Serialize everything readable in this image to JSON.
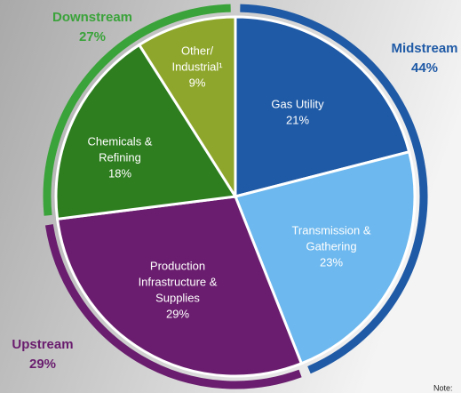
{
  "chart_data": {
    "type": "pie",
    "labels": [
      [
        "Gas Utility"
      ],
      [
        "Transmission &",
        "Gathering"
      ],
      [
        "Production",
        "Infrastructure &",
        "Supplies"
      ],
      [
        "Chemicals &",
        "Refining"
      ],
      [
        "Other/",
        "Industrial¹"
      ]
    ],
    "values": [
      21,
      23,
      29,
      18,
      9
    ],
    "value_labels": [
      "21%",
      "23%",
      "29%",
      "18%",
      "9%"
    ],
    "colors": [
      "#1f5aa6",
      "#6db8ee",
      "#6a1d6e",
      "#2e7d1f",
      "#8ea62b"
    ],
    "groups": [
      {
        "name": "Midstream",
        "value": 44,
        "value_label": "44%",
        "color": "#1f5aa6"
      },
      {
        "name": "Upstream",
        "value": 29,
        "value_label": "29%",
        "color": "#6a1d6e"
      },
      {
        "name": "Downstream",
        "value": 27,
        "value_label": "27%",
        "color": "#3aa33a"
      }
    ],
    "note": "Note:"
  }
}
